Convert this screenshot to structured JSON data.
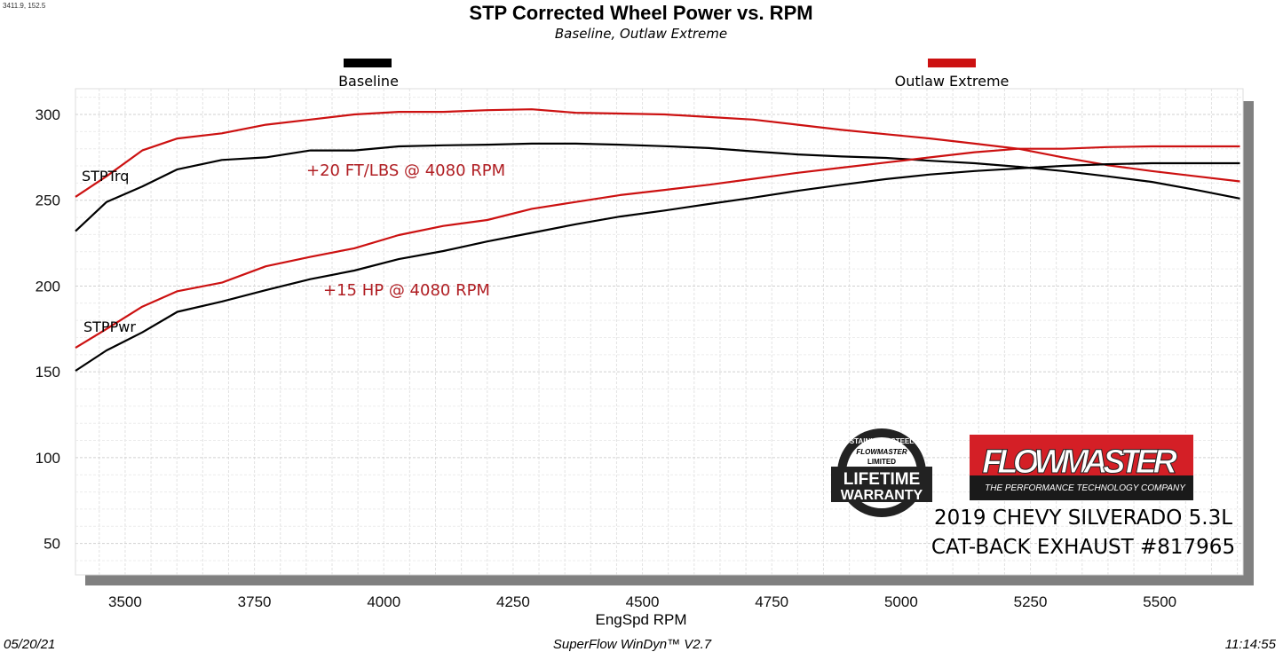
{
  "cursor_readout": "3411.9, 152.5",
  "footer": {
    "date": "05/20/21",
    "software": "SuperFlow WinDyn™  V2.7",
    "time": "11:14:55"
  },
  "logos": {
    "warranty_badge": [
      "STAINLESS STEEL",
      "FLOWMASTER",
      "LIMITED",
      "LIFETIME",
      "WARRANTY"
    ],
    "brand": "FLOWMASTER",
    "brand_tagline": "THE PERFORMANCE TECHNOLOGY COMPANY"
  },
  "vehicle_caption": [
    "2019 CHEVY SILVERADO 5.3L",
    "CAT-BACK EXHAUST #817965"
  ],
  "colors": {
    "baseline": "#000000",
    "outlaw_extreme": "#cc1111",
    "annotation": "#b01e23"
  },
  "chart_data": {
    "type": "line",
    "title": "STP Corrected Wheel Power vs. RPM",
    "subtitle": "Baseline, Outlaw Extreme",
    "xlabel": "EngSpd  RPM",
    "ylabel": "",
    "xlim": [
      3404,
      5661
    ],
    "ylim": [
      31.7,
      315
    ],
    "xticks": [
      3500,
      3750,
      4000,
      4250,
      4500,
      4750,
      5000,
      5250,
      5500
    ],
    "yticks": [
      50,
      100,
      150,
      200,
      250,
      300
    ],
    "grid": true,
    "legend": [
      {
        "name": "Baseline",
        "color": "#000000"
      },
      {
        "name": "Outlaw Extreme",
        "color": "#cc1111"
      }
    ],
    "legend_position": "top",
    "curve_labels": {
      "torque": "STPTrq",
      "power": "STPPwr"
    },
    "annotations": [
      "+20 FT/LBS @ 4080 RPM",
      "+15 HP @ 4080 RPM"
    ],
    "x": [
      3404,
      3464,
      3533,
      3601,
      3687,
      3772,
      3858,
      3943,
      4029,
      4115,
      4200,
      4286,
      4371,
      4457,
      4543,
      4628,
      4714,
      4800,
      4885,
      4971,
      5056,
      5142,
      5227,
      5313,
      5398,
      5484,
      5570,
      5655
    ],
    "series": [
      {
        "name": "Outlaw Extreme STPTrq",
        "legend": "Outlaw Extreme",
        "color": "#cc1111",
        "values": [
          252,
          264,
          279,
          286,
          289,
          294,
          297,
          300,
          301.5,
          301.5,
          302.5,
          303,
          301,
          300.5,
          300,
          298.5,
          297,
          294,
          291,
          288.5,
          286,
          283,
          280,
          275,
          270.5,
          267,
          264,
          261
        ]
      },
      {
        "name": "Baseline STPTrq",
        "legend": "Baseline",
        "color": "#000000",
        "values": [
          232,
          249,
          258,
          268,
          273.5,
          275,
          279,
          279,
          281.4,
          282,
          282.4,
          283,
          283,
          282.4,
          281.5,
          280.4,
          278.5,
          276.7,
          275.5,
          274.7,
          273,
          271.6,
          269.5,
          267,
          264,
          260.7,
          256,
          251
        ]
      },
      {
        "name": "Outlaw Extreme STPPwr",
        "legend": "Outlaw Extreme",
        "color": "#cc1111",
        "values": [
          164,
          175,
          188,
          197,
          202,
          211.5,
          217,
          222,
          229.7,
          235,
          238.5,
          245,
          249,
          253,
          256,
          259,
          262.5,
          266,
          269,
          272,
          275,
          278,
          280,
          280,
          281,
          281.4,
          281.4,
          281.4
        ]
      },
      {
        "name": "Baseline STPPwr",
        "legend": "Baseline",
        "color": "#000000",
        "values": [
          150.6,
          162.5,
          173,
          185,
          191,
          197.6,
          204,
          209,
          215.7,
          220.4,
          226,
          231,
          236,
          240.5,
          244,
          247.8,
          251.5,
          255.5,
          259,
          262.3,
          265,
          267,
          268.5,
          270,
          271,
          271.6,
          271.6,
          271.6
        ]
      }
    ]
  }
}
